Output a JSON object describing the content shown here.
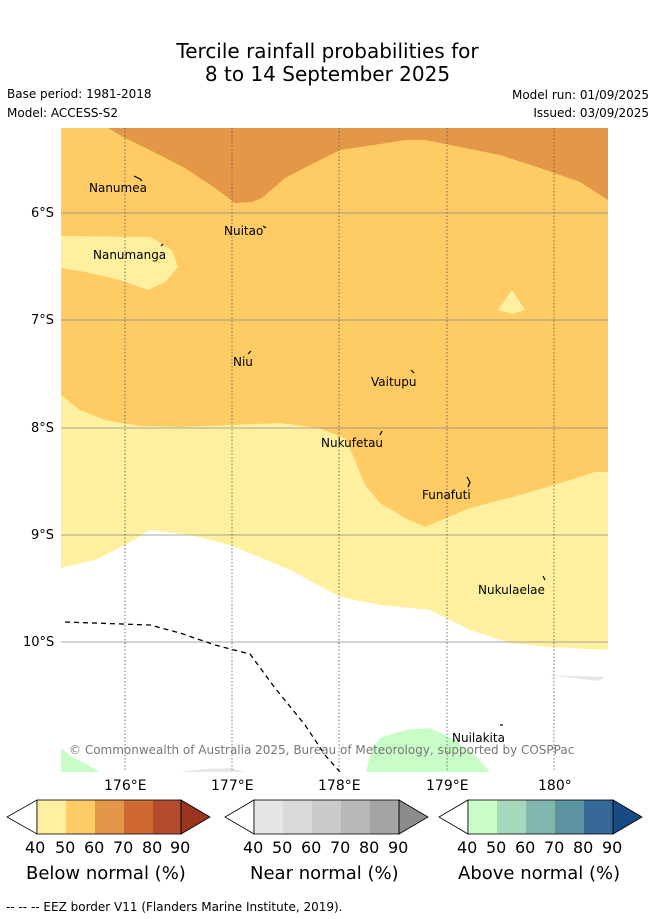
{
  "title": {
    "line1": "Tercile rainfall probabilities for",
    "line2": "8 to 14 September 2025"
  },
  "meta": {
    "base_period": "Base period: 1981-2018",
    "model": "Model: ACCESS-S2",
    "model_run": "Model run: 01/09/2025",
    "issued": "Issued: 03/09/2025"
  },
  "map": {
    "lat_labels": [
      "6°S",
      "7°S",
      "8°S",
      "9°S",
      "10°S"
    ],
    "lon_labels": [
      "176°E",
      "177°E",
      "178°E",
      "179°E",
      "180°"
    ],
    "places": {
      "nanumea": "Nanumea",
      "nuitao": "Nuitao",
      "nanumanga": "Nanumanga",
      "niu": "Niu",
      "vaitupu": "Vaitupu",
      "nukufetau": "Nukufetau",
      "funafuti": "Funafuti",
      "nukulaelae": "Nukulaelae",
      "nuilakita": "Nuilakita"
    },
    "credit": "© Commonwealth of Australia 2025, Bureau of Meteorology, supported by COSPPac"
  },
  "colorbars": {
    "ticks": [
      "40",
      "50",
      "60",
      "70",
      "80",
      "90"
    ],
    "below": {
      "title": "Below normal (%)",
      "colors": [
        "#fff0a0",
        "#fecb65",
        "#e39747",
        "#d06833",
        "#b24c2c",
        "#9c3422"
      ]
    },
    "near": {
      "title": "Near normal (%)",
      "colors": [
        "#e6e6e6",
        "#d9d9d9",
        "#cbcbcb",
        "#b8b8b8",
        "#a4a4a4",
        "#8c8c8c"
      ]
    },
    "above": {
      "title": "Above normal (%)",
      "colors": [
        "#c9fdc8",
        "#a6d8bd",
        "#82b7b0",
        "#5c93a1",
        "#356898",
        "#174b86"
      ]
    }
  },
  "footer": {
    "eez": "--  --  -- EEZ border V11 (Flanders Marine Institute, 2019)."
  }
}
